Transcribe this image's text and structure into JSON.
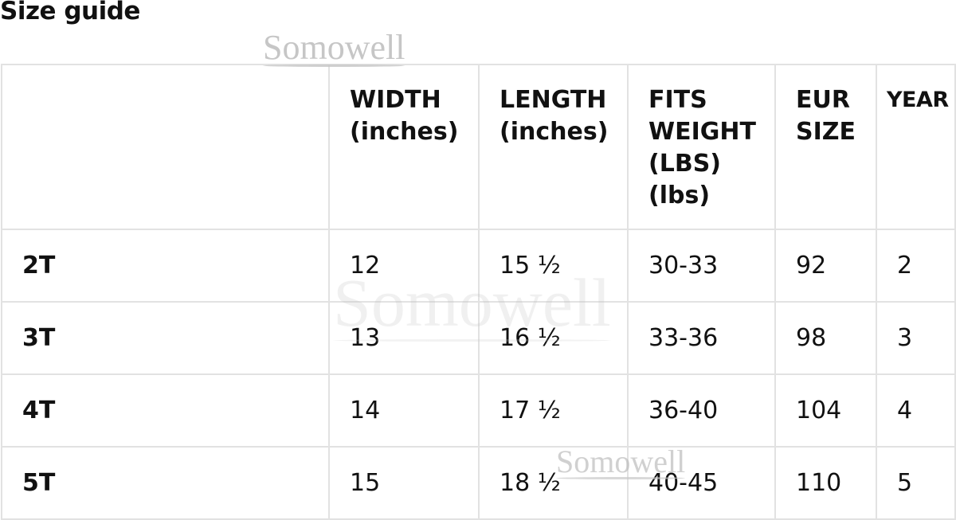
{
  "title": "Size guide",
  "watermark": "Somowell",
  "table": {
    "headers": [
      "",
      "WIDTH\n(inches)",
      "LENGTH\n(inches)",
      "FITS\nWEIGHT\n(LBS)\n(lbs)",
      "EUR\nSIZE",
      "YEAR"
    ],
    "rows": [
      [
        "2T",
        "12",
        "15 ½",
        "30-33",
        "92",
        "2"
      ],
      [
        "3T",
        "13",
        "16 ½",
        "33-36",
        "98",
        "3"
      ],
      [
        "4T",
        "14",
        "17 ½",
        "36-40",
        "104",
        "4"
      ],
      [
        "5T",
        "15",
        "18 ½",
        "40-45",
        "110",
        "5"
      ]
    ]
  }
}
